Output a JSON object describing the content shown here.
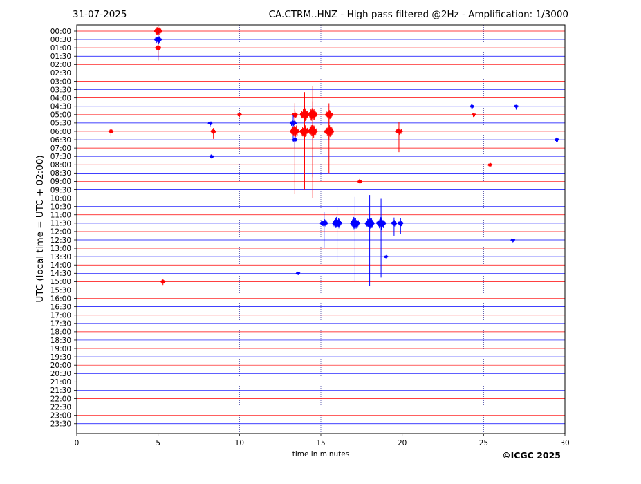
{
  "header": {
    "date": "31-07-2025",
    "title": "CA.CTRM..HNZ - High pass filtered @2Hz - Amplification: 1/3000"
  },
  "footer": {
    "copyright": "©ICGC 2025"
  },
  "chart_data": {
    "type": "line",
    "title": "CA.CTRM..HNZ - High pass filtered @2Hz - Amplification: 1/3000",
    "xlabel": "time in minutes",
    "ylabel": "UTC (local time = UTC + 02:00)",
    "xlim": [
      0,
      30
    ],
    "x_ticks": [
      0,
      5,
      10,
      15,
      20,
      25,
      30
    ],
    "x_tick_labels": [
      "0",
      "5",
      "10",
      "15",
      "20",
      "25",
      "30"
    ],
    "grid": "vertical dotted at each x tick",
    "trace_colors": [
      "#ff0000",
      "#0000ff"
    ],
    "rows": [
      "00:00",
      "00:30",
      "01:00",
      "01:30",
      "02:00",
      "02:30",
      "03:00",
      "03:30",
      "04:00",
      "04:30",
      "05:00",
      "05:30",
      "06:00",
      "06:30",
      "07:00",
      "07:30",
      "08:00",
      "08:30",
      "09:00",
      "09:30",
      "10:00",
      "10:30",
      "11:00",
      "11:30",
      "12:00",
      "12:30",
      "13:00",
      "13:30",
      "14:00",
      "14:30",
      "15:00",
      "15:30",
      "16:00",
      "16:30",
      "17:00",
      "17:30",
      "18:00",
      "18:30",
      "19:00",
      "19:30",
      "20:00",
      "20:30",
      "21:00",
      "21:30",
      "22:00",
      "22:30",
      "23:00",
      "23:30"
    ],
    "events": [
      {
        "row": "00:00",
        "minute": 5.0,
        "amplitude": 3.0
      },
      {
        "row": "00:30",
        "minute": 5.0,
        "amplitude": 2.5
      },
      {
        "row": "01:00",
        "minute": 5.0,
        "amplitude": 1.5
      },
      {
        "row": "04:30",
        "minute": 24.3,
        "amplitude": 0.3
      },
      {
        "row": "04:30",
        "minute": 27.0,
        "amplitude": 0.4
      },
      {
        "row": "05:00",
        "minute": 10.0,
        "amplitude": 0.3
      },
      {
        "row": "05:00",
        "minute": 13.4,
        "amplitude": 1.5
      },
      {
        "row": "05:00",
        "minute": 14.0,
        "amplitude": 6.0
      },
      {
        "row": "05:00",
        "minute": 14.5,
        "amplitude": 7.5
      },
      {
        "row": "05:00",
        "minute": 15.5,
        "amplitude": 3.0
      },
      {
        "row": "05:00",
        "minute": 24.4,
        "amplitude": 0.3
      },
      {
        "row": "05:30",
        "minute": 8.2,
        "amplitude": 0.4
      },
      {
        "row": "05:30",
        "minute": 13.3,
        "amplitude": 2.0
      },
      {
        "row": "06:00",
        "minute": 2.1,
        "amplitude": 0.6
      },
      {
        "row": "06:00",
        "minute": 8.4,
        "amplitude": 0.9
      },
      {
        "row": "06:00",
        "minute": 13.4,
        "amplitude": 7.5
      },
      {
        "row": "06:00",
        "minute": 14.0,
        "amplitude": 7.0
      },
      {
        "row": "06:00",
        "minute": 14.5,
        "amplitude": 8.0
      },
      {
        "row": "06:00",
        "minute": 15.5,
        "amplitude": 5.0
      },
      {
        "row": "06:00",
        "minute": 19.8,
        "amplitude": 2.5
      },
      {
        "row": "06:30",
        "minute": 13.4,
        "amplitude": 1.0
      },
      {
        "row": "06:30",
        "minute": 29.5,
        "amplitude": 0.3
      },
      {
        "row": "07:30",
        "minute": 8.3,
        "amplitude": 0.3
      },
      {
        "row": "08:00",
        "minute": 25.4,
        "amplitude": 0.3
      },
      {
        "row": "09:00",
        "minute": 17.4,
        "amplitude": 0.5
      },
      {
        "row": "11:30",
        "minute": 15.2,
        "amplitude": 3.0
      },
      {
        "row": "11:30",
        "minute": 16.0,
        "amplitude": 4.5
      },
      {
        "row": "11:30",
        "minute": 17.1,
        "amplitude": 7.0
      },
      {
        "row": "11:30",
        "minute": 18.0,
        "amplitude": 7.5
      },
      {
        "row": "11:30",
        "minute": 18.7,
        "amplitude": 6.5
      },
      {
        "row": "11:30",
        "minute": 19.5,
        "amplitude": 1.5
      },
      {
        "row": "11:30",
        "minute": 19.9,
        "amplitude": 1.3
      },
      {
        "row": "12:30",
        "minute": 26.8,
        "amplitude": 0.3
      },
      {
        "row": "13:30",
        "minute": 19.0,
        "amplitude": 0.2
      },
      {
        "row": "14:30",
        "minute": 13.6,
        "amplitude": 0.2
      },
      {
        "row": "15:00",
        "minute": 5.3,
        "amplitude": 0.4
      }
    ]
  }
}
